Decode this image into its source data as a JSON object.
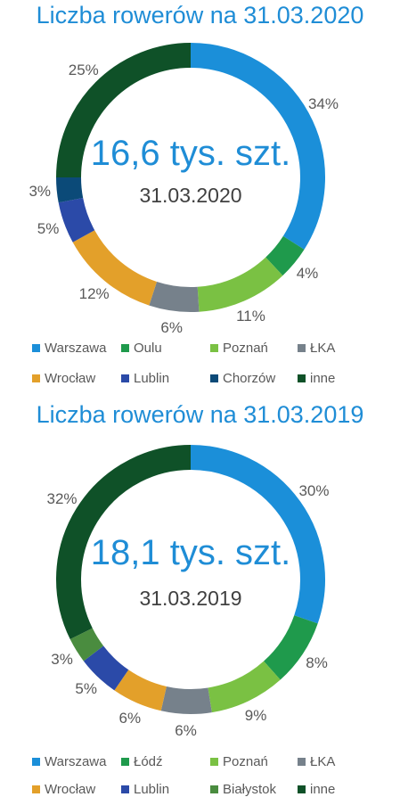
{
  "colors": {
    "title": "#1f8dd6",
    "text": "#595959"
  },
  "chart_data": [
    {
      "type": "pie",
      "variant": "donut",
      "title": "Liczba rowerów na 31.03.2020",
      "center_total": "16,6 tys. szt.",
      "center_date": "31.03.2020",
      "categories": [
        "Warszawa",
        "Oulu",
        "Poznań",
        "ŁKA",
        "Wrocław",
        "Lublin",
        "Chorzów",
        "inne"
      ],
      "values": [
        34,
        4,
        11,
        6,
        12,
        5,
        3,
        25
      ],
      "value_labels": [
        "34%",
        "4%",
        "11%",
        "6%",
        "12%",
        "5%",
        "3%",
        "25%"
      ],
      "colors": [
        "#1b8fd9",
        "#1f9a4c",
        "#7ac143",
        "#76818b",
        "#e3a02a",
        "#2b4aa8",
        "#0b4a78",
        "#0f5128"
      ],
      "legend_position": "bottom"
    },
    {
      "type": "pie",
      "variant": "donut",
      "title": "Liczba rowerów na 31.03.2019",
      "center_total": "18,1 tys. szt.",
      "center_date": "31.03.2019",
      "categories": [
        "Warszawa",
        "Łódź",
        "Poznań",
        "ŁKA",
        "Wrocław",
        "Lublin",
        "Białystok",
        "inne"
      ],
      "values": [
        30,
        8,
        9,
        6,
        6,
        5,
        3,
        32
      ],
      "value_labels": [
        "30%",
        "8%",
        "9%",
        "6%",
        "6%",
        "5%",
        "3%",
        "32%"
      ],
      "colors": [
        "#1b8fd9",
        "#1f9a4c",
        "#7ac143",
        "#76818b",
        "#e3a02a",
        "#2b4aa8",
        "#4a8c3f",
        "#0f5128"
      ],
      "legend_position": "bottom"
    }
  ]
}
